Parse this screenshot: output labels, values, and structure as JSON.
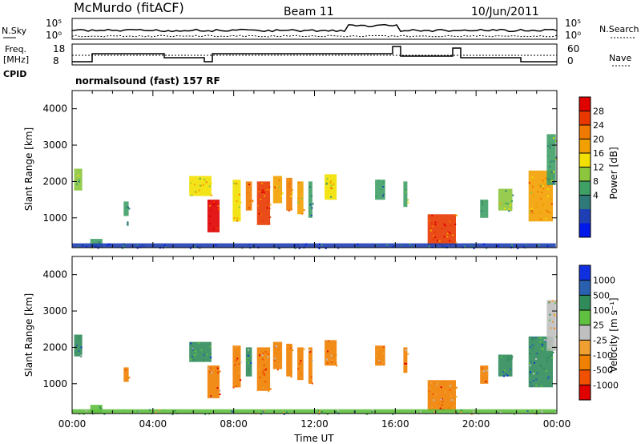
{
  "header": {
    "station": "McMurdo (fitACF)",
    "beam": "Beam 11",
    "date": "10/Jun/2011"
  },
  "status_panel": {
    "left_labels": {
      "nsky": "N.Sky",
      "freq_line1": "Freq.",
      "freq_line2": "[MHz]",
      "cpid": "CPID"
    },
    "right_labels": {
      "nsearch": "N.Search",
      "nave": "Nave"
    },
    "noise_ticks": [
      "10^5",
      "10^0"
    ],
    "freq_ticks": [
      "18",
      "8"
    ],
    "nave_ticks": [
      "60",
      "0"
    ],
    "cpid_text": "normalsound (fast) 157 RF"
  },
  "chart_data": [
    {
      "type": "heatmap",
      "name": "power",
      "ylabel": "Slant Range [km]",
      "xlabel": "",
      "xlim": [
        0,
        24
      ],
      "ylim": [
        180,
        4500
      ],
      "yticks": [
        1000,
        2000,
        3000,
        4000
      ],
      "colorbar": {
        "label": "Power [dB]",
        "ticks": [
          "28",
          "24",
          "20",
          "16",
          "12",
          "8",
          "4"
        ],
        "colors": [
          "#0018e8",
          "#1f3fb4",
          "#2f7a78",
          "#3fa066",
          "#8cc63e",
          "#f2e000",
          "#f2a000",
          "#f07a00",
          "#e83800",
          "#e00000"
        ]
      },
      "patches": [
        {
          "t0": 0.1,
          "t1": 0.5,
          "r0": 1750,
          "r1": 2350,
          "level": 4
        },
        {
          "t0": 0.9,
          "t1": 1.5,
          "r0": 180,
          "r1": 420,
          "level": 3
        },
        {
          "t0": 2.55,
          "t1": 2.8,
          "r0": 1050,
          "r1": 1450,
          "level": 3
        },
        {
          "t0": 2.7,
          "t1": 2.8,
          "r0": 780,
          "r1": 900,
          "level": 2
        },
        {
          "t0": 5.8,
          "t1": 6.9,
          "r0": 1600,
          "r1": 2150,
          "level": 5
        },
        {
          "t0": 6.7,
          "t1": 7.3,
          "r0": 600,
          "r1": 1500,
          "level": 9
        },
        {
          "t0": 7.95,
          "t1": 8.35,
          "r0": 900,
          "r1": 2050,
          "level": 5
        },
        {
          "t0": 8.6,
          "t1": 8.9,
          "r0": 1200,
          "r1": 2000,
          "level": 7
        },
        {
          "t0": 9.15,
          "t1": 9.8,
          "r0": 800,
          "r1": 2000,
          "level": 8
        },
        {
          "t0": 9.95,
          "t1": 10.4,
          "r0": 1400,
          "r1": 2150,
          "level": 6
        },
        {
          "t0": 10.6,
          "t1": 10.9,
          "r0": 1200,
          "r1": 2100,
          "level": 7
        },
        {
          "t0": 11.15,
          "t1": 11.45,
          "r0": 1100,
          "r1": 2000,
          "level": 6
        },
        {
          "t0": 11.7,
          "t1": 11.9,
          "r0": 1000,
          "r1": 2000,
          "level": 3
        },
        {
          "t0": 12.5,
          "t1": 13.1,
          "r0": 1500,
          "r1": 2200,
          "level": 5
        },
        {
          "t0": 15.0,
          "t1": 15.5,
          "r0": 1500,
          "r1": 2050,
          "level": 3
        },
        {
          "t0": 16.4,
          "t1": 16.6,
          "r0": 1300,
          "r1": 2000,
          "level": 3
        },
        {
          "t0": 17.6,
          "t1": 19.0,
          "r0": 250,
          "r1": 1100,
          "level": 8
        },
        {
          "t0": 20.2,
          "t1": 20.6,
          "r0": 1000,
          "r1": 1500,
          "level": 3
        },
        {
          "t0": 21.1,
          "t1": 21.8,
          "r0": 1200,
          "r1": 1800,
          "level": 4
        },
        {
          "t0": 22.6,
          "t1": 23.8,
          "r0": 900,
          "r1": 2300,
          "level": 6
        },
        {
          "t0": 23.5,
          "t1": 23.95,
          "r0": 1900,
          "r1": 3300,
          "level": 3
        },
        {
          "t0": 0.0,
          "t1": 23.95,
          "r0": 180,
          "r1": 300,
          "level": 1
        }
      ]
    },
    {
      "type": "heatmap",
      "name": "velocity",
      "ylabel": "Slant Range [km]",
      "xlabel": "Time UT",
      "xlim": [
        0,
        24
      ],
      "ylim": [
        180,
        4500
      ],
      "xticks": [
        "00:00",
        "04:00",
        "08:00",
        "12:00",
        "16:00",
        "20:00",
        "00:00"
      ],
      "yticks": [
        1000,
        2000,
        3000,
        4000
      ],
      "colorbar": {
        "label": "Velocity [m s^-1]",
        "ticks": [
          "1000",
          "500",
          "100",
          "25",
          "-25",
          "-100",
          "-500",
          "-1000"
        ],
        "colors": [
          "#e00000",
          "#f05000",
          "#f08000",
          "#f0a030",
          "#c0c0c0",
          "#60c040",
          "#2f8c5a",
          "#2a60b0",
          "#1030e0"
        ]
      },
      "patches": [
        {
          "t0": 0.1,
          "t1": 0.5,
          "r0": 1750,
          "r1": 2350,
          "level": 6
        },
        {
          "t0": 0.9,
          "t1": 1.5,
          "r0": 180,
          "r1": 420,
          "level": 5
        },
        {
          "t0": 2.55,
          "t1": 2.8,
          "r0": 1050,
          "r1": 1450,
          "level": 2
        },
        {
          "t0": 5.8,
          "t1": 6.9,
          "r0": 1600,
          "r1": 2150,
          "level": 6
        },
        {
          "t0": 6.7,
          "t1": 7.3,
          "r0": 600,
          "r1": 1500,
          "level": 2
        },
        {
          "t0": 7.95,
          "t1": 8.35,
          "r0": 900,
          "r1": 2050,
          "level": 2
        },
        {
          "t0": 8.6,
          "t1": 8.9,
          "r0": 1200,
          "r1": 2000,
          "level": 6
        },
        {
          "t0": 9.15,
          "t1": 9.8,
          "r0": 800,
          "r1": 2000,
          "level": 2
        },
        {
          "t0": 9.95,
          "t1": 10.4,
          "r0": 1400,
          "r1": 2150,
          "level": 2
        },
        {
          "t0": 10.6,
          "t1": 10.9,
          "r0": 1200,
          "r1": 2100,
          "level": 2
        },
        {
          "t0": 11.15,
          "t1": 11.45,
          "r0": 1100,
          "r1": 2000,
          "level": 2
        },
        {
          "t0": 11.7,
          "t1": 11.9,
          "r0": 1000,
          "r1": 2000,
          "level": 2
        },
        {
          "t0": 12.5,
          "t1": 13.1,
          "r0": 1500,
          "r1": 2200,
          "level": 2
        },
        {
          "t0": 15.0,
          "t1": 15.5,
          "r0": 1500,
          "r1": 2050,
          "level": 2
        },
        {
          "t0": 16.4,
          "t1": 16.6,
          "r0": 1300,
          "r1": 2000,
          "level": 2
        },
        {
          "t0": 17.6,
          "t1": 19.0,
          "r0": 250,
          "r1": 1100,
          "level": 2
        },
        {
          "t0": 20.2,
          "t1": 20.6,
          "r0": 1000,
          "r1": 1500,
          "level": 2
        },
        {
          "t0": 21.1,
          "t1": 21.8,
          "r0": 1200,
          "r1": 1800,
          "level": 6
        },
        {
          "t0": 22.6,
          "t1": 23.8,
          "r0": 900,
          "r1": 2300,
          "level": 6
        },
        {
          "t0": 23.5,
          "t1": 23.95,
          "r0": 1900,
          "r1": 3300,
          "level": 4
        },
        {
          "t0": 0.0,
          "t1": 23.95,
          "r0": 180,
          "r1": 300,
          "level": 5
        }
      ]
    }
  ]
}
